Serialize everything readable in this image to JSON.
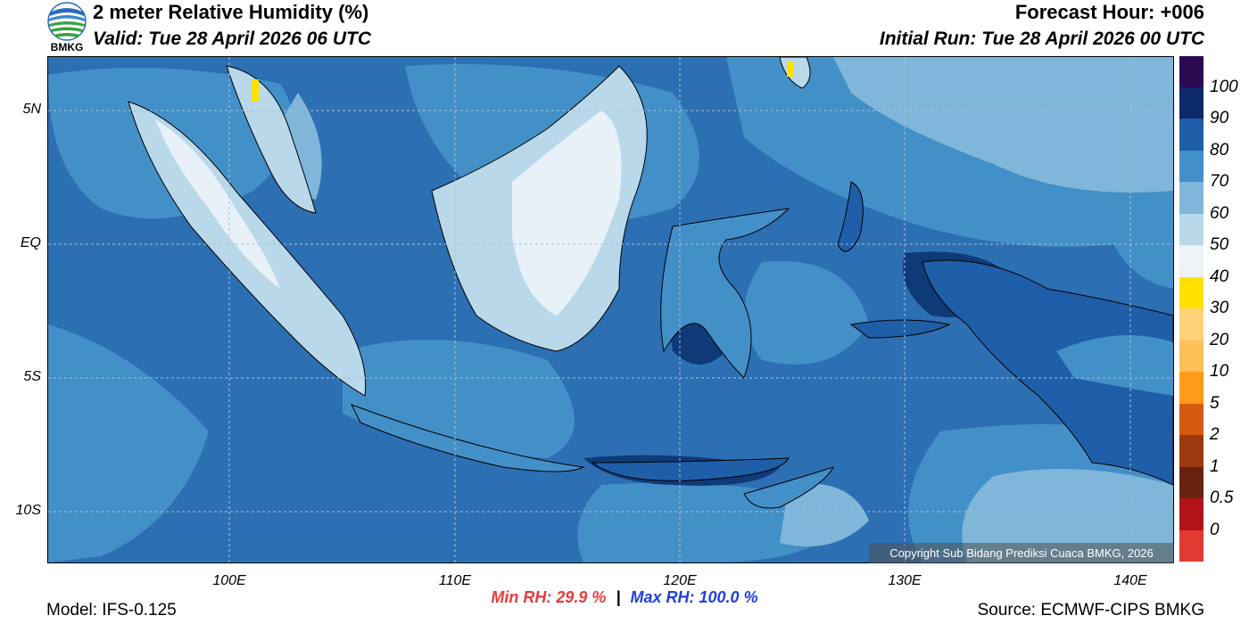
{
  "header": {
    "title": "2 meter Relative Humidity (%)",
    "valid": "Valid: Tue 28 April 2026 06 UTC",
    "forecast_hour": "Forecast Hour: +006",
    "initial_run": "Initial Run: Tue 28 April 2026 00 UTC"
  },
  "logo": {
    "text": "BMKG"
  },
  "map": {
    "lat_labels": [
      "5N",
      "EQ",
      "5S",
      "10S"
    ],
    "lon_labels": [
      "100E",
      "110E",
      "120E",
      "130E",
      "140E"
    ],
    "copyright": "Copyright Sub Bidang Prediksi Cuaca BMKG, 2026"
  },
  "stats": {
    "min_rh": "Min RH:  29.9 %",
    "separator": "|",
    "max_rh": "Max RH: 100.0 %",
    "min_color": "#e63c3c",
    "max_color": "#2040e0"
  },
  "footer": {
    "model": "Model: IFS-0.125",
    "source": "Source: ECMWF-CIPS BMKG"
  },
  "colorbar": {
    "labels": [
      "100",
      "90",
      "80",
      "70",
      "60",
      "50",
      "40",
      "30",
      "20",
      "10",
      "5",
      "2",
      "1",
      "0.5",
      "0"
    ],
    "colors": [
      "#2a0a50",
      "#0a2a6a",
      "#1f5ea8",
      "#4390c8",
      "#7fb6d9",
      "#b9d8ea",
      "#eef3f7",
      "#ffe000",
      "#ffd27a",
      "#ffc05a",
      "#ff9a1a",
      "#d55a10",
      "#9a3a0e",
      "#6a2210",
      "#b01418",
      "#e23a30"
    ]
  }
}
